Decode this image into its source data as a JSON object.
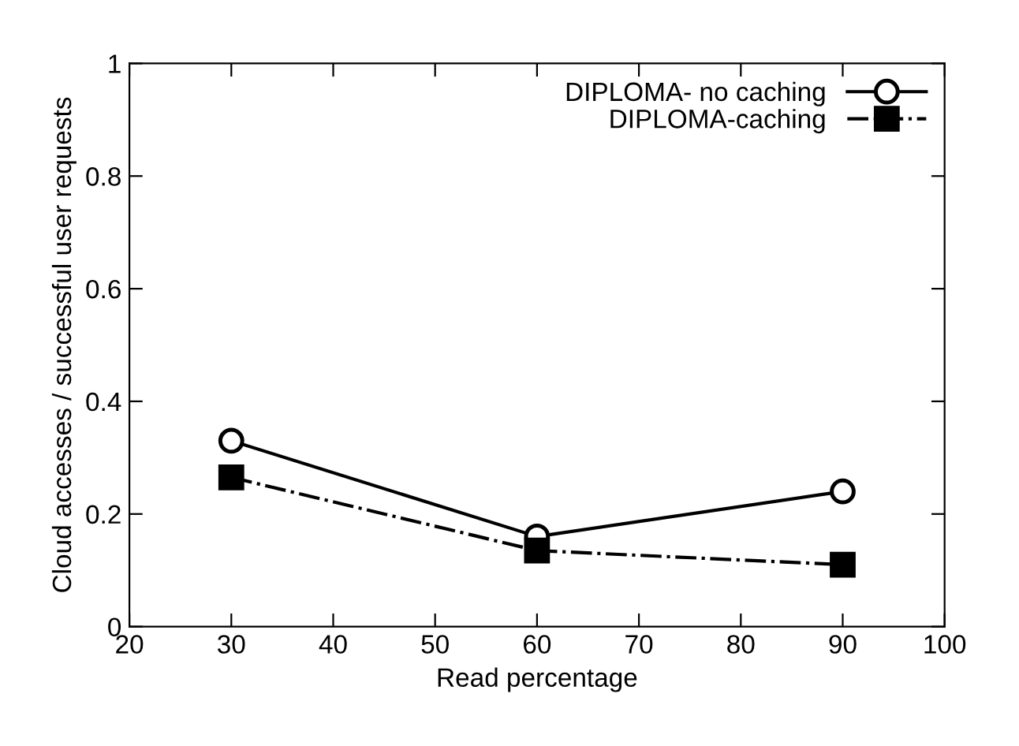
{
  "chart_data": {
    "type": "line",
    "xlabel": "Read percentage",
    "ylabel": "Cloud accesses / successful user requests",
    "x": [
      30,
      60,
      90
    ],
    "series": [
      {
        "name": "DIPLOMA- no caching",
        "color": "#000000",
        "values": [
          0.33,
          0.16,
          0.24
        ],
        "marker": "circle",
        "line_style": "solid"
      },
      {
        "name": "DIPLOMA-caching",
        "color": "#000000",
        "values": [
          0.265,
          0.135,
          0.11
        ],
        "marker": "square",
        "line_style": "dashdot"
      }
    ],
    "xlim": [
      20,
      100
    ],
    "xticks": [
      20,
      30,
      40,
      50,
      60,
      70,
      80,
      90,
      100
    ],
    "ylim": [
      0,
      1
    ],
    "yticks": [
      0,
      0.2,
      0.4,
      0.6,
      0.8,
      1
    ],
    "grid": false,
    "legend": "top right"
  }
}
